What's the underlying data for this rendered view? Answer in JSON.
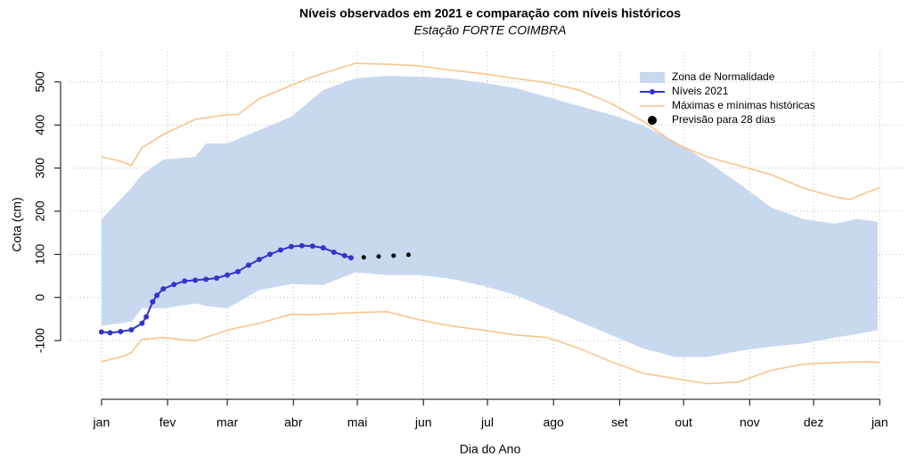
{
  "chart_data": {
    "type": "band-line",
    "title": "Níveis observados em 2021 e comparação com níveis históricos",
    "subtitle": "Estação FORTE COIMBRA",
    "xlabel": "Dia do Ano",
    "ylabel": "Cota (cm)",
    "xlim": [
      -14,
      378
    ],
    "ylim": [
      -230,
      570
    ],
    "xticks": [
      {
        "value": 1,
        "label": "jan"
      },
      {
        "value": 32,
        "label": "fev"
      },
      {
        "value": 60,
        "label": "mar"
      },
      {
        "value": 91,
        "label": "abr"
      },
      {
        "value": 121,
        "label": "mai"
      },
      {
        "value": 152,
        "label": "jun"
      },
      {
        "value": 182,
        "label": "jul"
      },
      {
        "value": 213,
        "label": "ago"
      },
      {
        "value": 244,
        "label": "set"
      },
      {
        "value": 274,
        "label": "out"
      },
      {
        "value": 305,
        "label": "nov"
      },
      {
        "value": 335,
        "label": "dez"
      },
      {
        "value": 366,
        "label": "jan"
      }
    ],
    "yticks": [
      -100,
      0,
      100,
      200,
      300,
      400,
      500
    ],
    "grid": true,
    "legend": "top-right",
    "series": [
      {
        "name": "Zona de Normalidade",
        "kind": "band",
        "color": "#c8d8ef",
        "x": [
          1,
          15,
          20,
          30,
          45,
          50,
          60,
          75,
          90,
          105,
          120,
          135,
          150,
          165,
          180,
          195,
          210,
          225,
          240,
          255,
          270,
          285,
          300,
          315,
          330,
          345,
          355,
          365
        ],
        "high": [
          182,
          254,
          285,
          320,
          326,
          357,
          357,
          388,
          419,
          481,
          508,
          514,
          512,
          508,
          498,
          486,
          465,
          444,
          424,
          399,
          362,
          316,
          264,
          209,
          182,
          171,
          182,
          176
        ],
        "low": [
          -66,
          -56,
          -25,
          -25,
          -14,
          -20,
          -25,
          17,
          31,
          29,
          58,
          52,
          52,
          43,
          27,
          6,
          -25,
          -56,
          -87,
          -118,
          -138,
          -138,
          -124,
          -114,
          -107,
          -93,
          -85,
          -76
        ]
      },
      {
        "name": "Níveis 2021",
        "kind": "line",
        "color": "#3333cc",
        "x": [
          1,
          5,
          10,
          15,
          20,
          22,
          25,
          27,
          30,
          35,
          40,
          45,
          50,
          55,
          60,
          65,
          70,
          75,
          80,
          85,
          90,
          95,
          100,
          105,
          110,
          115,
          118
        ],
        "values": [
          -80,
          -82,
          -79,
          -75,
          -60,
          -45,
          -10,
          5,
          20,
          30,
          38,
          40,
          42,
          45,
          52,
          60,
          75,
          88,
          100,
          110,
          118,
          120,
          119,
          115,
          105,
          97,
          92
        ]
      },
      {
        "name": "Máximas e mínimas históricas",
        "kind": "envelope",
        "color": "#f8c48c",
        "x": [
          1,
          10,
          15,
          20,
          30,
          45,
          60,
          65,
          75,
          90,
          100,
          120,
          135,
          150,
          165,
          180,
          195,
          210,
          225,
          240,
          255,
          270,
          285,
          300,
          315,
          330,
          345,
          352,
          360,
          366
        ],
        "high": [
          326,
          316,
          306,
          347,
          378,
          413,
          424,
          424,
          461,
          492,
          512,
          543,
          541,
          537,
          527,
          519,
          508,
          498,
          481,
          450,
          409,
          357,
          326,
          306,
          285,
          254,
          233,
          227,
          244,
          254
        ],
        "low": [
          -149,
          -138,
          -128,
          -97,
          -93,
          -101,
          -76,
          -70,
          -60,
          -39,
          -40,
          -35,
          -33,
          -52,
          -66,
          -76,
          -87,
          -93,
          -118,
          -149,
          -176,
          -188,
          -200,
          -196,
          -169,
          -155,
          -151,
          -150,
          -149,
          -151
        ]
      },
      {
        "name": "Previsão para 28 dias",
        "kind": "points",
        "color": "#000000",
        "x": [
          124,
          131,
          138,
          145
        ],
        "values": [
          93,
          95,
          97,
          99
        ]
      }
    ]
  }
}
